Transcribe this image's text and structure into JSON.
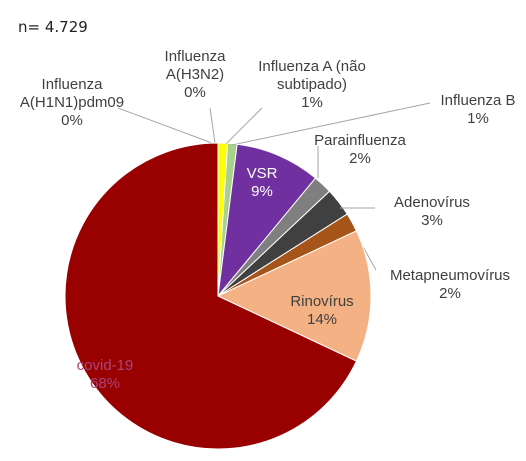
{
  "chart_data": {
    "type": "pie",
    "title": "n= 4.729",
    "categories": [
      "Influenza A(H1N1)pdm09",
      "Influenza A(H3N2)",
      "Influenza A (não subtipado)",
      "Influenza B",
      "VSR",
      "Parainfluenza",
      "Adenovírus",
      "Metapneumovírus",
      "Rinovírus",
      "covid-19"
    ],
    "values": [
      0,
      0,
      1,
      1,
      9,
      2,
      3,
      2,
      14,
      68
    ],
    "value_labels": [
      "0%",
      "0%",
      "1%",
      "1%",
      "9%",
      "2%",
      "3%",
      "2%",
      "14%",
      "68%"
    ],
    "colors": [
      "#bfbfbf",
      "#d9d9d9",
      "#ffff00",
      "#a9d18e",
      "#7030a0",
      "#7f7f7f",
      "#404040",
      "#a5541a",
      "#f4b183",
      "#990000"
    ]
  }
}
